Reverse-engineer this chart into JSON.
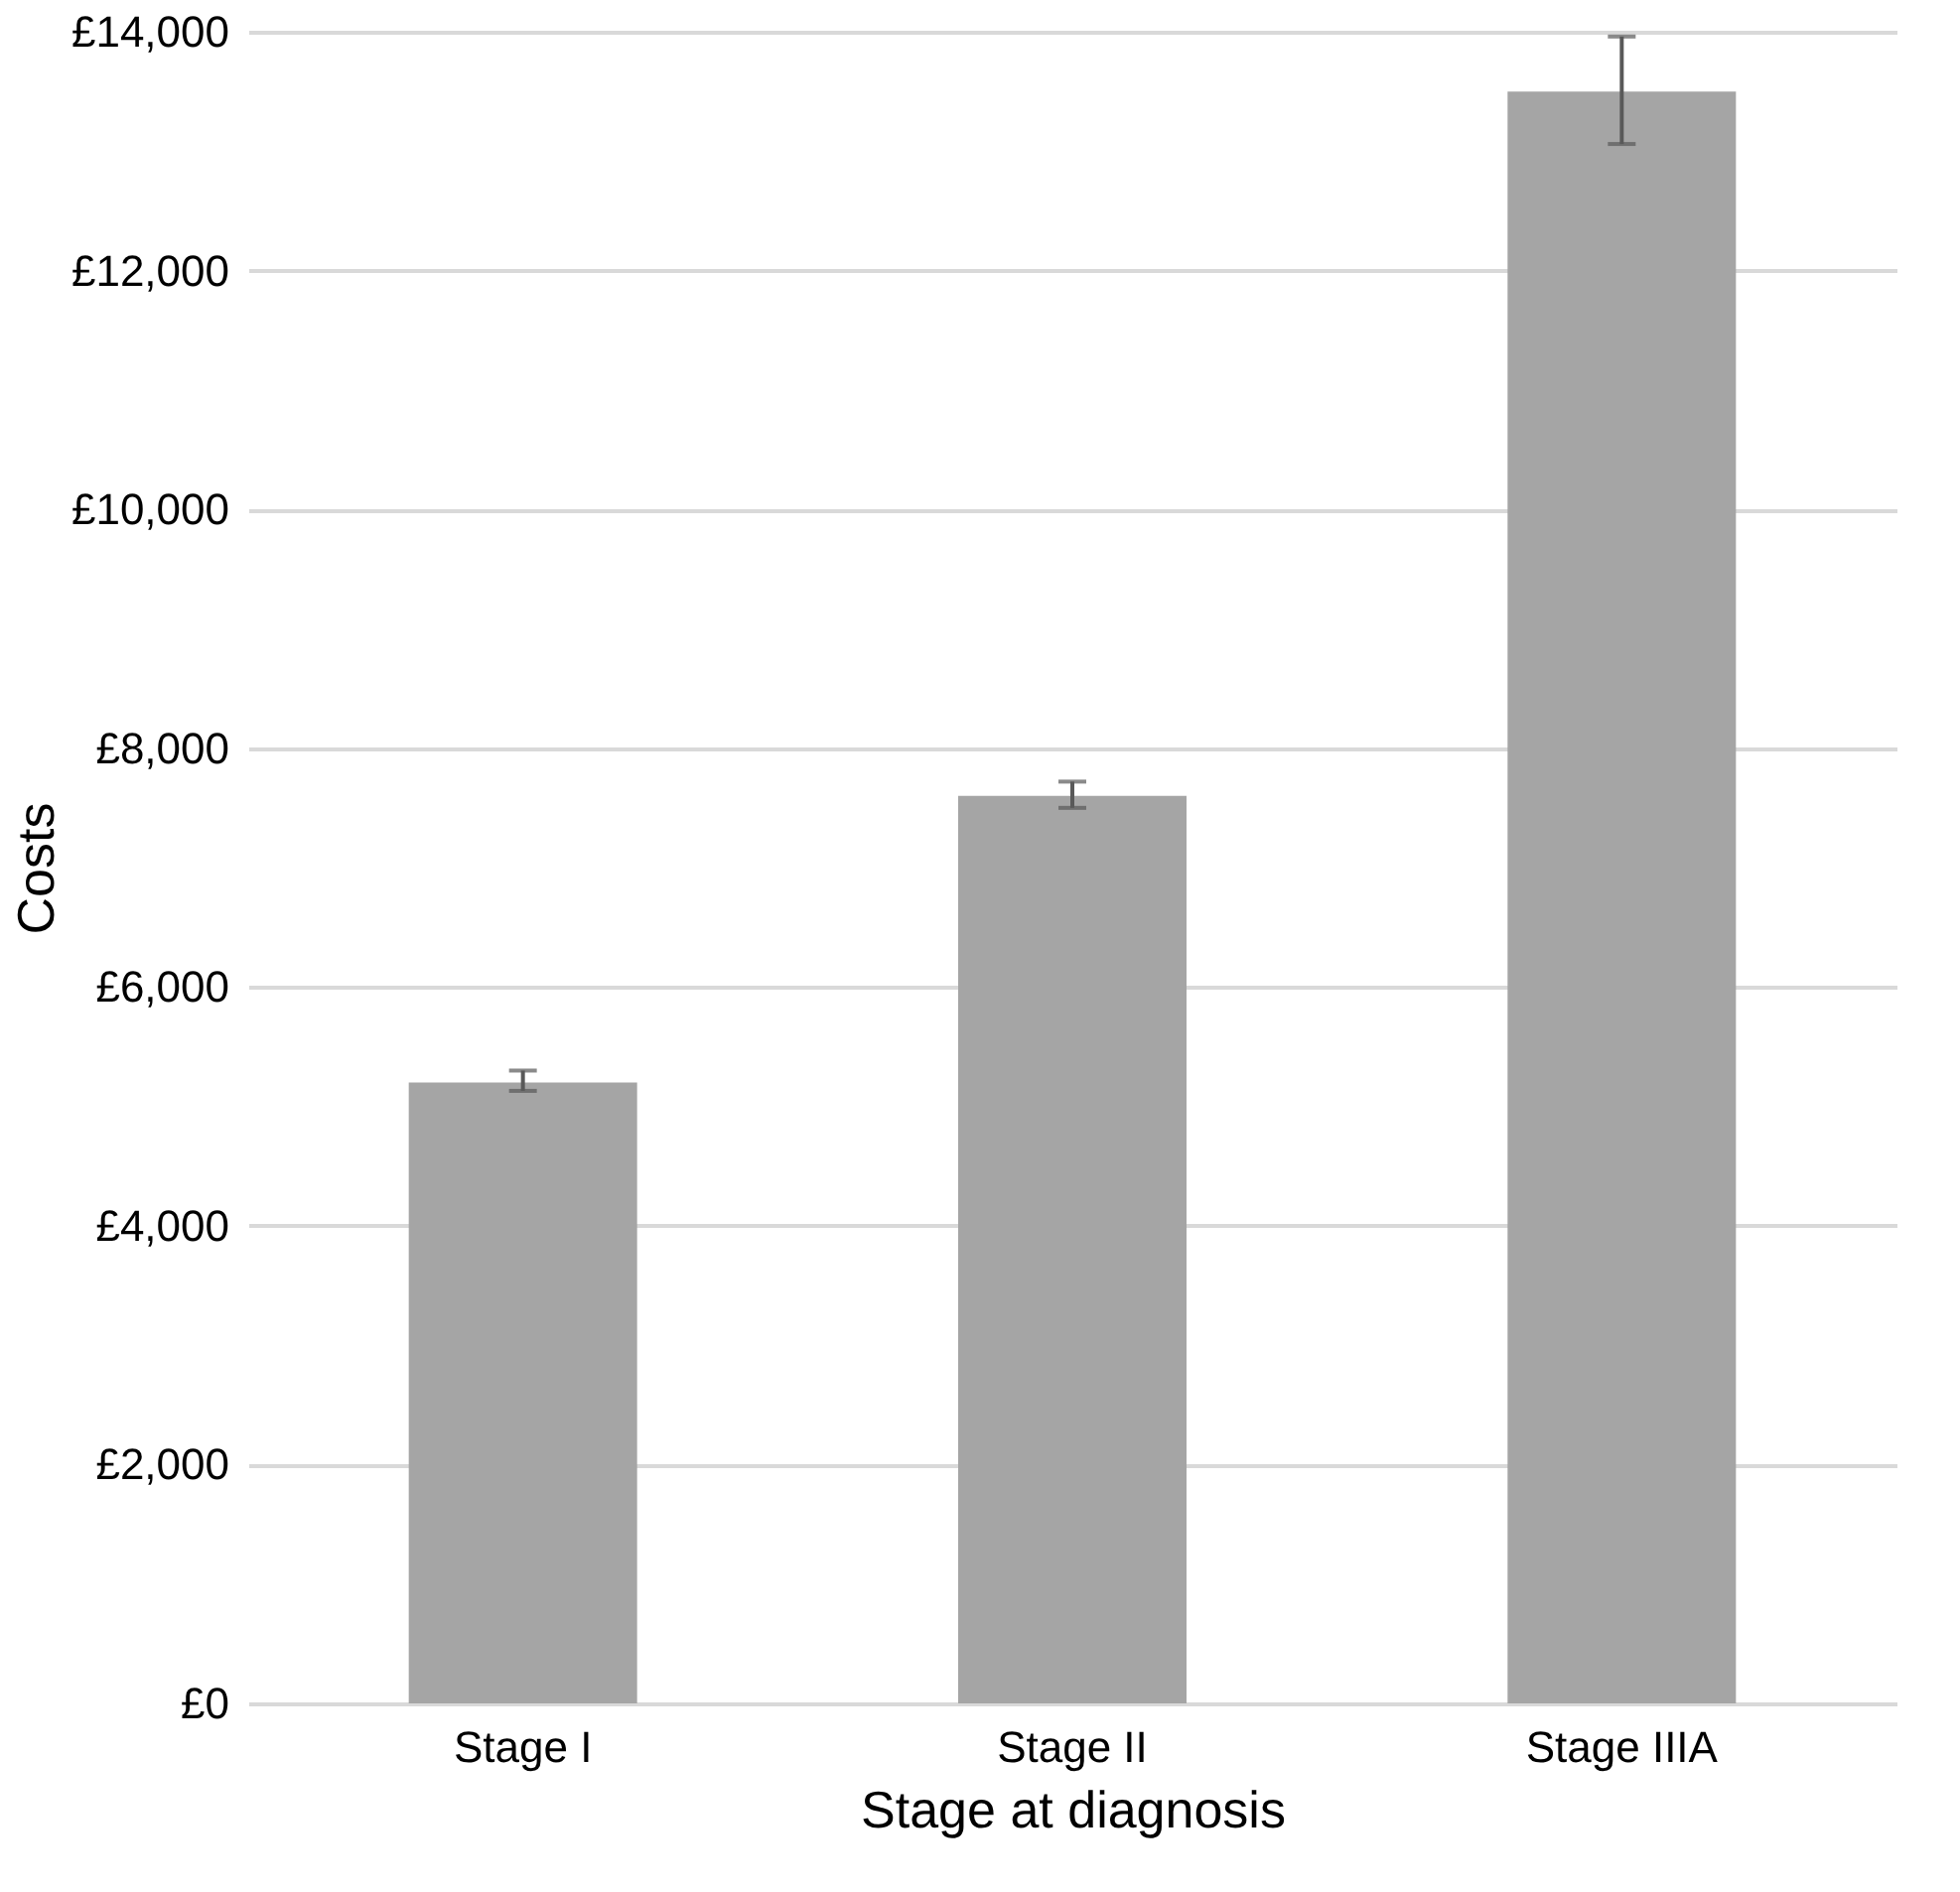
{
  "chart_data": {
    "type": "bar",
    "xlabel": "Stage at diagnosis",
    "ylabel": "Costs",
    "categories": [
      "Stage I",
      "Stage II",
      "Stage IIIA"
    ],
    "series": [
      {
        "color": "#a5a5a5",
        "values": [
          5200,
          7600,
          13500
        ],
        "errors": [
          [
            5130,
            5300
          ],
          [
            7500,
            7720
          ],
          [
            13060,
            13960
          ]
        ]
      }
    ],
    "ylim": [
      0,
      14000
    ],
    "yticks": [
      {
        "value": 0,
        "label": "£0"
      },
      {
        "value": 2000,
        "label": "£2,000"
      },
      {
        "value": 4000,
        "label": "£4,000"
      },
      {
        "value": 6000,
        "label": "£6,000"
      },
      {
        "value": 8000,
        "label": "£8,000"
      },
      {
        "value": 10000,
        "label": "£10,000"
      },
      {
        "value": 12000,
        "label": "£12,000"
      },
      {
        "value": 14000,
        "label": "£14,000"
      }
    ],
    "grid": "y"
  }
}
